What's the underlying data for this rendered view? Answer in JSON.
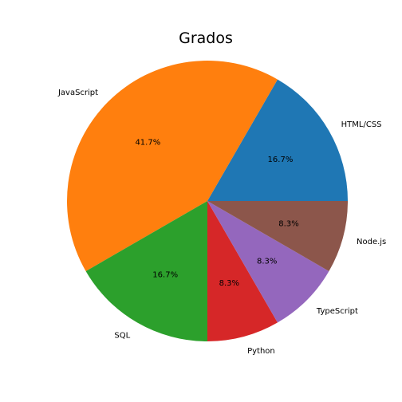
{
  "chart_data": {
    "type": "pie",
    "title": "Grados",
    "start_angle_deg": 0,
    "direction": "counterclockwise",
    "slices": [
      {
        "label": "HTML/CSS",
        "value": 2,
        "pct_label": "16.7%",
        "color": "#1f77b4"
      },
      {
        "label": "JavaScript",
        "value": 5,
        "pct_label": "41.7%",
        "color": "#ff7f0e"
      },
      {
        "label": "SQL",
        "value": 2,
        "pct_label": "16.7%",
        "color": "#2ca02c"
      },
      {
        "label": "Python",
        "value": 1,
        "pct_label": "8.3%",
        "color": "#d62728"
      },
      {
        "label": "TypeScript",
        "value": 1,
        "pct_label": "8.3%",
        "color": "#9467bd"
      },
      {
        "label": "Node.js",
        "value": 1,
        "pct_label": "8.3%",
        "color": "#8c564b"
      }
    ]
  }
}
